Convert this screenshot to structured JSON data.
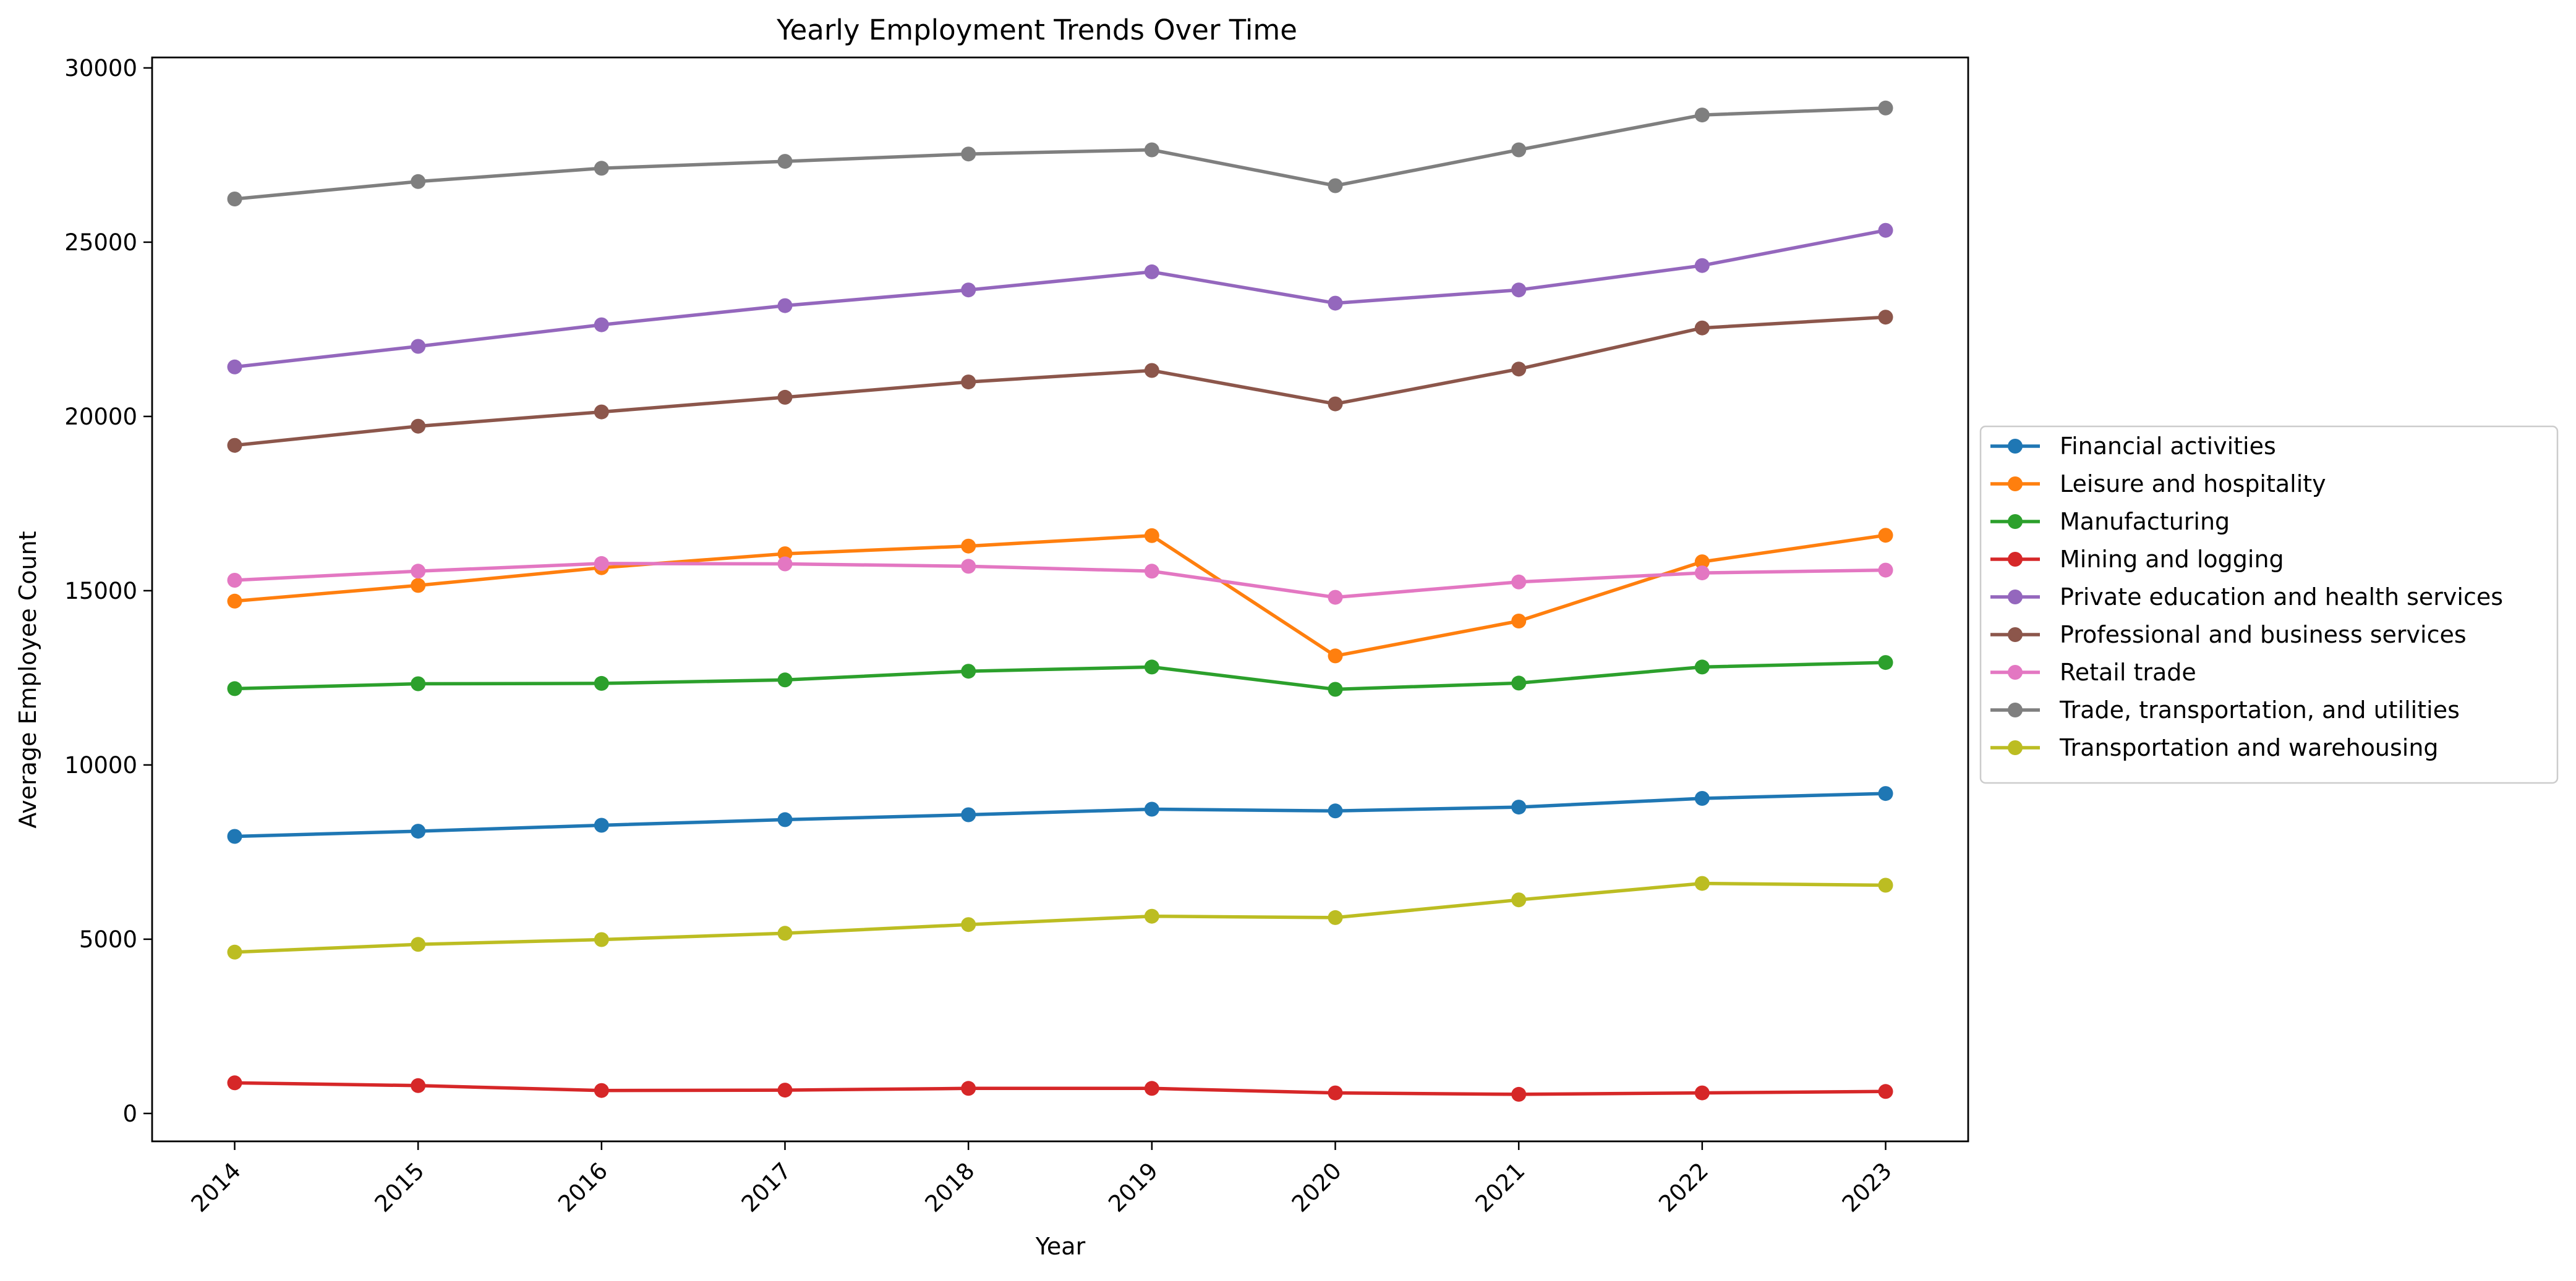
{
  "chart_data": {
    "type": "line",
    "title": "Yearly Employment Trends Over Time",
    "xlabel": "Year",
    "ylabel": "Average Employee Count",
    "x": [
      "2014",
      "2015",
      "2016",
      "2017",
      "2018",
      "2019",
      "2020",
      "2021",
      "2022",
      "2023"
    ],
    "xlim": [
      2013.55,
      2023.45
    ],
    "ylim": [
      -800,
      30300
    ],
    "yticks": [
      0,
      5000,
      10000,
      15000,
      20000,
      25000,
      30000
    ],
    "grid": false,
    "legend_position": "center-right, outside plot",
    "markers": "circle",
    "series": [
      {
        "name": "Financial activities",
        "color": "#1f77b4",
        "values": [
          7950,
          8100,
          8270,
          8430,
          8570,
          8730,
          8680,
          8790,
          9040,
          9180
        ]
      },
      {
        "name": "Leisure and hospitality",
        "color": "#ff7f0e",
        "values": [
          14700,
          15150,
          15660,
          16060,
          16280,
          16580,
          13130,
          14130,
          15830,
          16590
        ]
      },
      {
        "name": "Manufacturing",
        "color": "#2ca02c",
        "values": [
          12190,
          12330,
          12340,
          12440,
          12690,
          12810,
          12170,
          12350,
          12810,
          12940
        ]
      },
      {
        "name": "Mining and logging",
        "color": "#d62728",
        "values": [
          880,
          800,
          660,
          670,
          720,
          720,
          590,
          550,
          590,
          630
        ]
      },
      {
        "name": "Private education and health services",
        "color": "#9467bd",
        "values": [
          21420,
          22010,
          22630,
          23180,
          23630,
          24150,
          23250,
          23630,
          24330,
          25340
        ]
      },
      {
        "name": "Professional and business services",
        "color": "#8c564b",
        "values": [
          19170,
          19720,
          20130,
          20550,
          20990,
          21320,
          20360,
          21360,
          22540,
          22850
        ]
      },
      {
        "name": "Retail trade",
        "color": "#e377c2",
        "values": [
          15300,
          15560,
          15780,
          15770,
          15700,
          15560,
          14810,
          15250,
          15510,
          15590
        ]
      },
      {
        "name": "Trade, transportation, and utilities",
        "color": "#7f7f7f",
        "values": [
          26240,
          26740,
          27120,
          27320,
          27530,
          27650,
          26620,
          27650,
          28650,
          28850
        ]
      },
      {
        "name": "Transportation and warehousing",
        "color": "#bcbd22",
        "values": [
          4630,
          4850,
          4990,
          5170,
          5420,
          5660,
          5620,
          6130,
          6600,
          6550
        ]
      }
    ]
  }
}
